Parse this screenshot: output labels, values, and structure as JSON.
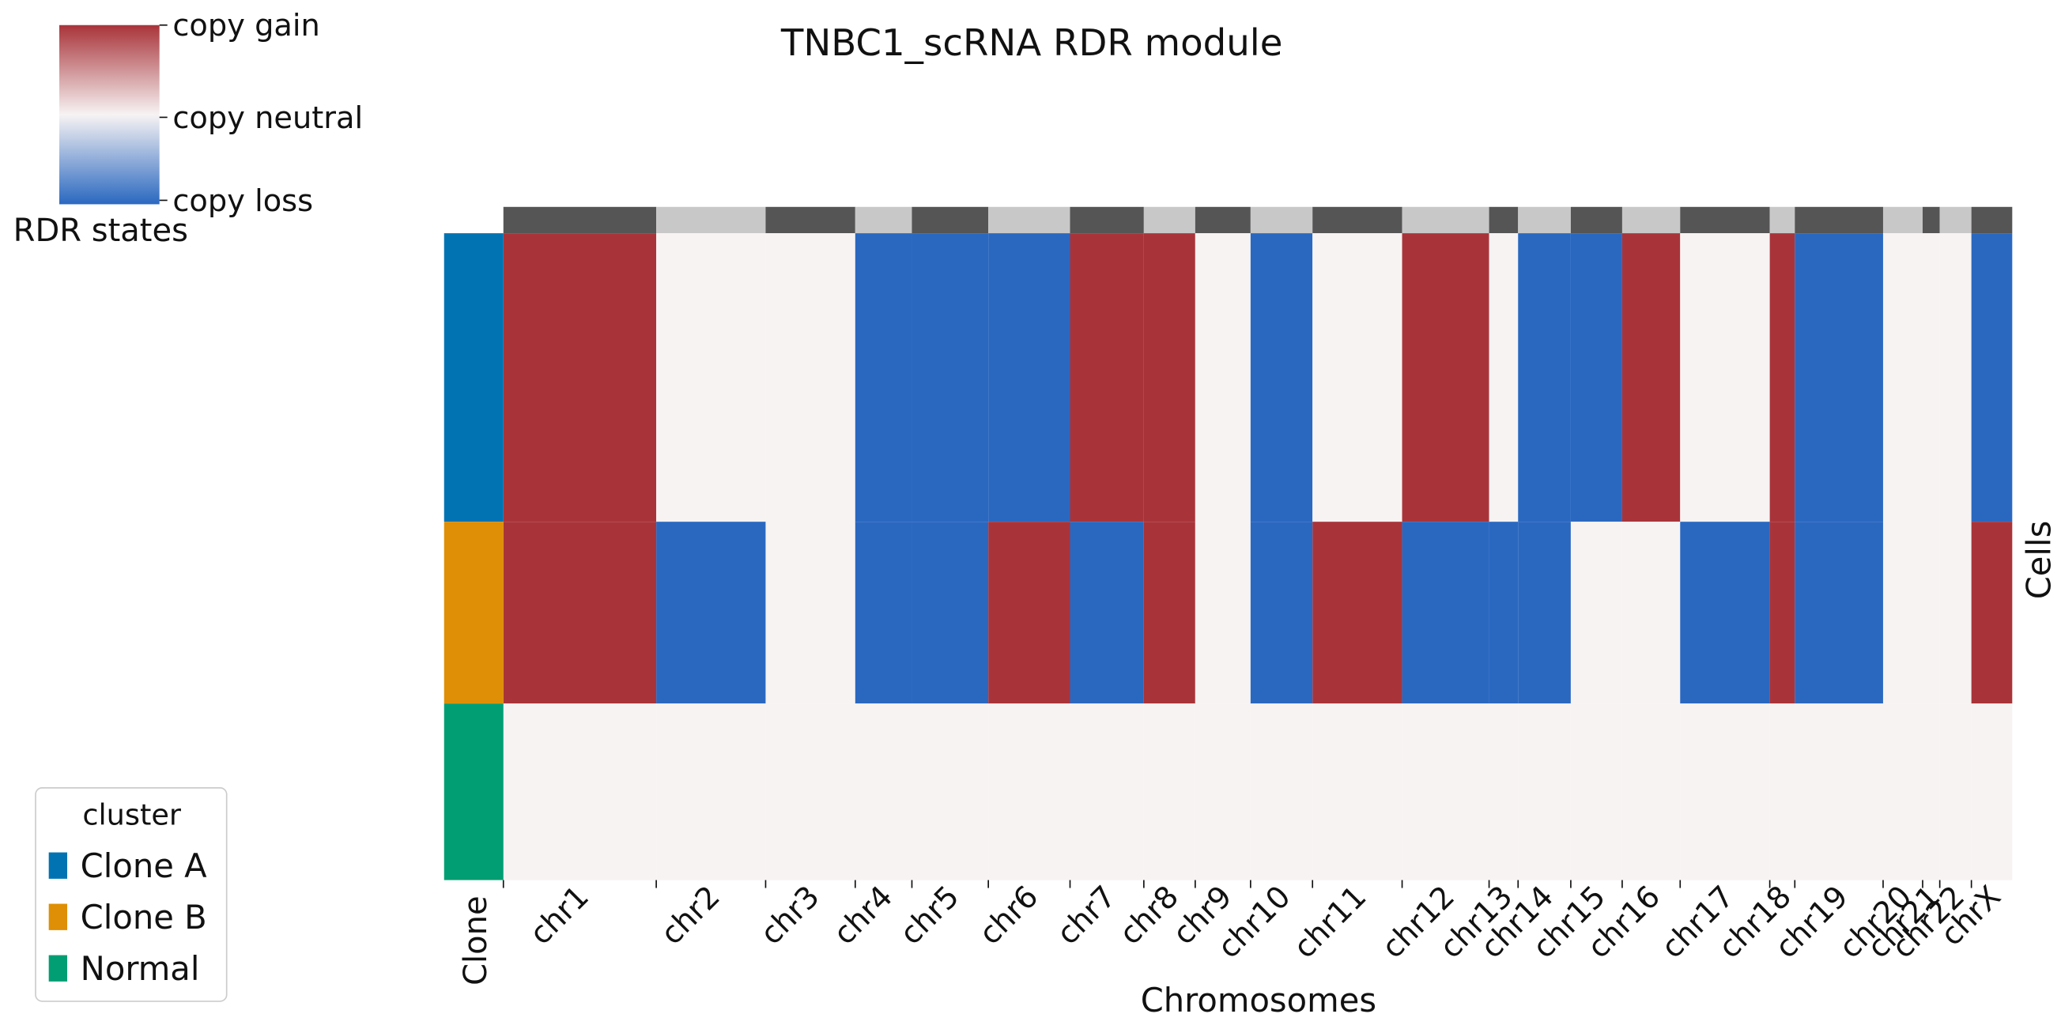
{
  "chart_data": {
    "type": "heatmap",
    "title": "TNBC1_scRNA RDR module",
    "xlabel": "Chromosomes",
    "ylabel": "Cells",
    "row_label": "Clone",
    "categories": [
      "chr1",
      "chr2",
      "chr3",
      "chr4",
      "chr5",
      "chr6",
      "chr7",
      "chr8",
      "chr9",
      "chr10",
      "chr11",
      "chr12",
      "chr13",
      "chr14",
      "chr15",
      "chr16",
      "chr17",
      "chr18",
      "chr19",
      "chr20",
      "chr21",
      "chr22",
      "chrX"
    ],
    "colorbar": {
      "title": "RDR states",
      "labels": [
        "copy gain",
        "copy neutral",
        "copy loss"
      ],
      "colors": [
        "#a8343a",
        "#f7f3f3",
        "#2a68c0"
      ]
    },
    "legend_title": "cluster",
    "series": [
      {
        "name": "Clone A",
        "color": "#0173b2",
        "values": [
          1,
          0,
          0,
          -1,
          -1,
          -1,
          1,
          1,
          0,
          -1,
          0,
          1,
          0,
          -1,
          -1,
          1,
          0,
          1,
          -1,
          0,
          0,
          0,
          -1
        ]
      },
      {
        "name": "Clone B",
        "color": "#de8f05",
        "values": [
          1,
          -1,
          0,
          -1,
          -1,
          1,
          -1,
          1,
          0,
          -1,
          1,
          -1,
          -1,
          -1,
          0,
          0,
          -1,
          1,
          -1,
          0,
          0,
          0,
          1
        ]
      },
      {
        "name": "Normal",
        "color": "#029e73",
        "values": [
          0,
          0,
          0,
          0,
          0,
          0,
          0,
          0,
          0,
          0,
          0,
          0,
          0,
          0,
          0,
          0,
          0,
          0,
          0,
          0,
          0,
          0,
          0
        ]
      }
    ]
  }
}
